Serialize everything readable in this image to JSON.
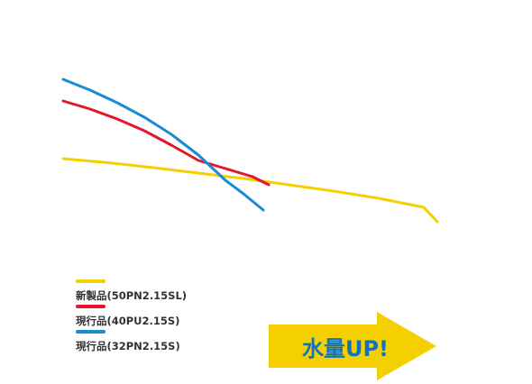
{
  "chart_data": {
    "type": "line",
    "title": "",
    "xlabel": "",
    "ylabel": "",
    "grid": false,
    "legend_position": "bottom-left",
    "series": [
      {
        "name": "新製品(50PN2.15SL)",
        "color": "#f5d000",
        "x": [
          0,
          50,
          100,
          150,
          200,
          250,
          300,
          350,
          400,
          415
        ],
        "y": [
          0,
          -4.5,
          -10,
          -16,
          -22,
          -29,
          -36,
          -44,
          -54,
          -70
        ]
      },
      {
        "name": "現行品(40PU2.15S)",
        "color": "#e3172d",
        "x": [
          0,
          30,
          60,
          90,
          120,
          150,
          180,
          210,
          228
        ],
        "y": [
          0,
          -9,
          -20,
          -33,
          -49,
          -66,
          -75,
          -84,
          -93
        ]
      },
      {
        "name": "現行品(32PN2.15S)",
        "color": "#1a8ad4",
        "x": [
          0,
          30,
          60,
          90,
          120,
          150,
          180,
          200,
          222
        ],
        "y": [
          0,
          -12,
          -26,
          -42,
          -61,
          -84,
          -112,
          -127,
          -145
        ]
      }
    ]
  },
  "arrow": {
    "label": "水量UP!",
    "fill": "#f5d000",
    "text_color": "#1572b8"
  }
}
